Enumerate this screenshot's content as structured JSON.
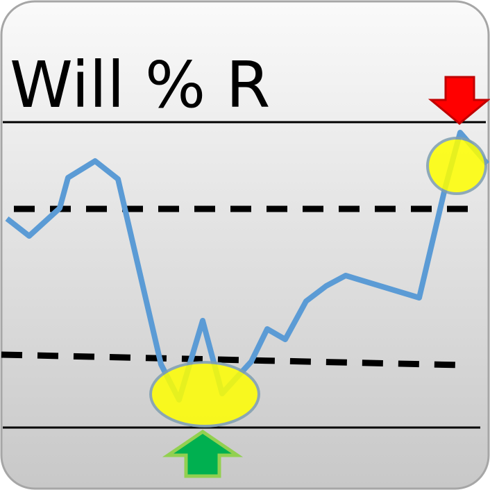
{
  "title": "Will % R",
  "colors": {
    "background_top": "#fafafa",
    "background_bottom": "#c8c8c8",
    "border": "#a6a6a6",
    "line": "#5b9bd5",
    "highlight": "#ffff00",
    "highlight_stroke": "#7f9fb0",
    "sell_arrow": "#ff0000",
    "buy_arrow": "#00b050"
  },
  "icons": {
    "sell": "arrow-down-icon",
    "buy": "arrow-up-icon"
  }
}
